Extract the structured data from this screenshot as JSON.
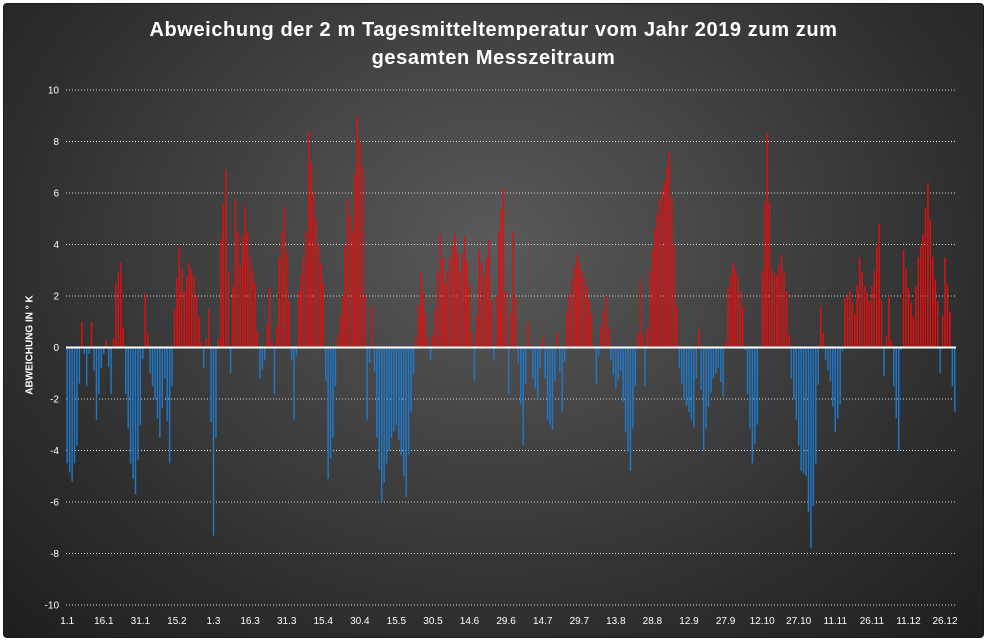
{
  "chart_data": {
    "type": "bar",
    "title_line1": "Abweichung der 2 m Tagesmitteltemperatur  vom Jahr 2019 zum zum",
    "title_line2": "gesamten Messzeitraum",
    "xlabel": "",
    "ylabel": "ABWEICHUNG IN ° K",
    "ylim": [
      -10,
      10
    ],
    "y_ticks": [
      10,
      8,
      6,
      4,
      2,
      0,
      -2,
      -4,
      -6,
      -8,
      -10
    ],
    "x_tick_labels": [
      "1.1",
      "16.1",
      "31.1",
      "15.2",
      "1.3",
      "16.3",
      "31.3",
      "15.4",
      "30.4",
      "15.5",
      "30.5",
      "14.6",
      "29.6",
      "14.7",
      "29.7",
      "13.8",
      "28.8",
      "12.9",
      "27.9",
      "12.10",
      "27.10",
      "11.11",
      "26.11",
      "11.12",
      "26.12"
    ],
    "grid": "horizontal dotted",
    "colors": {
      "positive": "#e01010",
      "negative": "#1f78c8",
      "zero_line": "#ffffff"
    },
    "anchors": [
      [
        1,
        -4.5
      ],
      [
        3,
        -5.2
      ],
      [
        5,
        -3.8
      ],
      [
        7,
        1.0
      ],
      [
        9,
        -1.5
      ],
      [
        11,
        1.0
      ],
      [
        13,
        -2.8
      ],
      [
        15,
        -0.8
      ],
      [
        17,
        0.3
      ],
      [
        19,
        -1.8
      ],
      [
        21,
        2.5
      ],
      [
        23,
        3.3
      ],
      [
        25,
        -1.8
      ],
      [
        27,
        -4.5
      ],
      [
        29,
        -5.7
      ],
      [
        31,
        -3.0
      ],
      [
        33,
        2.1
      ],
      [
        35,
        -1.0
      ],
      [
        37,
        -2.0
      ],
      [
        39,
        -3.5
      ],
      [
        41,
        -1.2
      ],
      [
        43,
        -4.5
      ],
      [
        45,
        1.5
      ],
      [
        47,
        3.9
      ],
      [
        49,
        2.2
      ],
      [
        51,
        3.3
      ],
      [
        53,
        2.8
      ],
      [
        55,
        1.2
      ],
      [
        57,
        -0.8
      ],
      [
        59,
        1.5
      ],
      [
        61,
        -7.3
      ],
      [
        62,
        -3.5
      ],
      [
        64,
        4.2
      ],
      [
        66,
        6.9
      ],
      [
        68,
        -1.0
      ],
      [
        70,
        5.8
      ],
      [
        72,
        3.2
      ],
      [
        74,
        5.5
      ],
      [
        76,
        3.5
      ],
      [
        78,
        2.5
      ],
      [
        80,
        -1.2
      ],
      [
        82,
        -0.5
      ],
      [
        84,
        2.3
      ],
      [
        86,
        -1.8
      ],
      [
        88,
        3.5
      ],
      [
        90,
        5.5
      ],
      [
        92,
        1.8
      ],
      [
        94,
        -2.8
      ],
      [
        96,
        2.2
      ],
      [
        98,
        3.5
      ],
      [
        99,
        4.5
      ],
      [
        100,
        8.4
      ],
      [
        102,
        6.0
      ],
      [
        104,
        4.0
      ],
      [
        106,
        2.5
      ],
      [
        108,
        -5.1
      ],
      [
        110,
        -3.5
      ],
      [
        112,
        0.5
      ],
      [
        114,
        2.0
      ],
      [
        116,
        5.8
      ],
      [
        118,
        4.5
      ],
      [
        120,
        9.0
      ],
      [
        122,
        7.0
      ],
      [
        124,
        -2.8
      ],
      [
        126,
        1.6
      ],
      [
        128,
        -3.5
      ],
      [
        130,
        -6.0
      ],
      [
        132,
        -4.5
      ],
      [
        134,
        -3.5
      ],
      [
        136,
        -3.0
      ],
      [
        138,
        -4.2
      ],
      [
        140,
        -5.8
      ],
      [
        142,
        -2.5
      ],
      [
        144,
        0.4
      ],
      [
        146,
        2.9
      ],
      [
        148,
        1.3
      ],
      [
        150,
        -0.5
      ],
      [
        152,
        1.5
      ],
      [
        154,
        4.4
      ],
      [
        156,
        2.5
      ],
      [
        158,
        3.5
      ],
      [
        160,
        4.4
      ],
      [
        162,
        3.0
      ],
      [
        164,
        4.3
      ],
      [
        166,
        2.4
      ],
      [
        168,
        -1.3
      ],
      [
        170,
        3.8
      ],
      [
        172,
        2.8
      ],
      [
        174,
        4.2
      ],
      [
        176,
        -0.5
      ],
      [
        178,
        4.5
      ],
      [
        180,
        6.2
      ],
      [
        182,
        -1.8
      ],
      [
        184,
        4.5
      ],
      [
        186,
        -0.6
      ],
      [
        188,
        -3.8
      ],
      [
        190,
        1.0
      ],
      [
        192,
        -1.2
      ],
      [
        194,
        -2.0
      ],
      [
        196,
        0.4
      ],
      [
        198,
        -2.8
      ],
      [
        200,
        -3.2
      ],
      [
        202,
        0.6
      ],
      [
        204,
        -2.5
      ],
      [
        206,
        1.4
      ],
      [
        208,
        2.7
      ],
      [
        210,
        3.6
      ],
      [
        212,
        3.0
      ],
      [
        214,
        2.4
      ],
      [
        216,
        1.3
      ],
      [
        218,
        -1.4
      ],
      [
        220,
        0.8
      ],
      [
        222,
        2.0
      ],
      [
        224,
        -0.5
      ],
      [
        226,
        -1.6
      ],
      [
        228,
        -0.9
      ],
      [
        230,
        -3.3
      ],
      [
        232,
        -4.8
      ],
      [
        234,
        -1.5
      ],
      [
        236,
        2.6
      ],
      [
        238,
        -1.5
      ],
      [
        240,
        3.0
      ],
      [
        242,
        4.6
      ],
      [
        244,
        5.8
      ],
      [
        246,
        6.5
      ],
      [
        248,
        7.6
      ],
      [
        250,
        4.0
      ],
      [
        252,
        -0.8
      ],
      [
        254,
        -2.0
      ],
      [
        256,
        -2.5
      ],
      [
        258,
        -3.1
      ],
      [
        260,
        0.7
      ],
      [
        262,
        -4.0
      ],
      [
        264,
        -2.3
      ],
      [
        266,
        -1.2
      ],
      [
        268,
        -0.8
      ],
      [
        270,
        -1.9
      ],
      [
        272,
        2.3
      ],
      [
        274,
        3.3
      ],
      [
        276,
        2.8
      ],
      [
        278,
        1.6
      ],
      [
        280,
        -1.8
      ],
      [
        282,
        -4.5
      ],
      [
        284,
        -3.0
      ],
      [
        286,
        3.0
      ],
      [
        288,
        8.3
      ],
      [
        290,
        3.0
      ],
      [
        292,
        2.8
      ],
      [
        294,
        3.6
      ],
      [
        296,
        2.2
      ],
      [
        298,
        -1.2
      ],
      [
        300,
        -2.8
      ],
      [
        302,
        -4.8
      ],
      [
        304,
        -5.0
      ],
      [
        306,
        -7.8
      ],
      [
        308,
        -4.5
      ],
      [
        310,
        1.6
      ],
      [
        312,
        -0.5
      ],
      [
        314,
        -1.3
      ],
      [
        316,
        -3.3
      ],
      [
        318,
        -2.2
      ],
      [
        320,
        1.9
      ],
      [
        322,
        2.2
      ],
      [
        324,
        1.3
      ],
      [
        326,
        3.5
      ],
      [
        328,
        2.4
      ],
      [
        330,
        1.8
      ],
      [
        332,
        3.0
      ],
      [
        334,
        4.8
      ],
      [
        336,
        -1.1
      ],
      [
        338,
        2.0
      ],
      [
        340,
        -1.5
      ],
      [
        342,
        -4.0
      ],
      [
        344,
        3.8
      ],
      [
        346,
        2.3
      ],
      [
        348,
        1.2
      ],
      [
        350,
        3.5
      ],
      [
        352,
        4.4
      ],
      [
        354,
        6.4
      ],
      [
        356,
        3.5
      ],
      [
        358,
        1.8
      ],
      [
        359,
        -1.0
      ],
      [
        361,
        3.5
      ],
      [
        363,
        1.4
      ],
      [
        364,
        -1.5
      ],
      [
        365,
        -2.5
      ]
    ]
  }
}
